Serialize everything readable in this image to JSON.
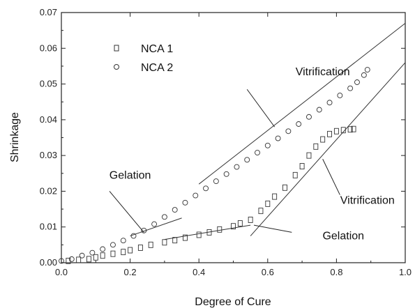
{
  "chart_data": {
    "type": "scatter",
    "title": "",
    "xlabel": "Degree of Cure",
    "ylabel": "Shrinkage",
    "xlim": [
      0.0,
      1.0
    ],
    "ylim": [
      0.0,
      0.07
    ],
    "x_ticks": [
      "0.0",
      "0.2",
      "0.4",
      "0.6",
      "0.8",
      "1.0"
    ],
    "y_ticks": [
      "0.00",
      "0.01",
      "0.02",
      "0.03",
      "0.04",
      "0.05",
      "0.06",
      "0.07"
    ],
    "grid": false,
    "legend_position": "top-left",
    "series": [
      {
        "name": "NCA 1",
        "marker": "square",
        "points": [
          [
            0.02,
            0.0005
          ],
          [
            0.05,
            0.0008
          ],
          [
            0.08,
            0.001
          ],
          [
            0.1,
            0.0015
          ],
          [
            0.12,
            0.002
          ],
          [
            0.15,
            0.0025
          ],
          [
            0.18,
            0.003
          ],
          [
            0.2,
            0.0035
          ],
          [
            0.23,
            0.0042
          ],
          [
            0.26,
            0.005
          ],
          [
            0.3,
            0.0057
          ],
          [
            0.33,
            0.0063
          ],
          [
            0.36,
            0.007
          ],
          [
            0.4,
            0.0078
          ],
          [
            0.43,
            0.0085
          ],
          [
            0.46,
            0.0093
          ],
          [
            0.5,
            0.0102
          ],
          [
            0.52,
            0.011
          ],
          [
            0.55,
            0.012
          ],
          [
            0.58,
            0.0145
          ],
          [
            0.6,
            0.0165
          ],
          [
            0.62,
            0.0185
          ],
          [
            0.65,
            0.021
          ],
          [
            0.68,
            0.0245
          ],
          [
            0.7,
            0.027
          ],
          [
            0.72,
            0.03
          ],
          [
            0.74,
            0.0325
          ],
          [
            0.76,
            0.0345
          ],
          [
            0.78,
            0.036
          ],
          [
            0.8,
            0.0368
          ],
          [
            0.82,
            0.0371
          ],
          [
            0.84,
            0.0373
          ],
          [
            0.85,
            0.0374
          ]
        ]
      },
      {
        "name": "NCA 2",
        "marker": "circle",
        "points": [
          [
            0.0,
            0.0005
          ],
          [
            0.03,
            0.001
          ],
          [
            0.06,
            0.002
          ],
          [
            0.09,
            0.0028
          ],
          [
            0.12,
            0.0038
          ],
          [
            0.15,
            0.005
          ],
          [
            0.18,
            0.0062
          ],
          [
            0.21,
            0.0075
          ],
          [
            0.24,
            0.009
          ],
          [
            0.27,
            0.0108
          ],
          [
            0.3,
            0.0128
          ],
          [
            0.33,
            0.0148
          ],
          [
            0.36,
            0.0168
          ],
          [
            0.39,
            0.0188
          ],
          [
            0.42,
            0.0208
          ],
          [
            0.45,
            0.0228
          ],
          [
            0.48,
            0.0248
          ],
          [
            0.51,
            0.0268
          ],
          [
            0.54,
            0.0288
          ],
          [
            0.57,
            0.0308
          ],
          [
            0.6,
            0.0328
          ],
          [
            0.63,
            0.0348
          ],
          [
            0.66,
            0.0368
          ],
          [
            0.69,
            0.0388
          ],
          [
            0.72,
            0.0408
          ],
          [
            0.75,
            0.0428
          ],
          [
            0.78,
            0.0448
          ],
          [
            0.81,
            0.0468
          ],
          [
            0.84,
            0.0488
          ],
          [
            0.86,
            0.0505
          ],
          [
            0.88,
            0.0525
          ],
          [
            0.89,
            0.054
          ]
        ]
      }
    ],
    "fit_lines": [
      {
        "x": [
          0.2,
          0.35
        ],
        "y": [
          0.0075,
          0.0125
        ]
      },
      {
        "x": [
          0.4,
          1.0
        ],
        "y": [
          0.022,
          0.067
        ]
      },
      {
        "x": [
          0.3,
          0.55
        ],
        "y": [
          0.0065,
          0.0105
        ]
      },
      {
        "x": [
          0.55,
          1.0
        ],
        "y": [
          0.0075,
          0.056
        ]
      }
    ],
    "annotations": [
      {
        "text": "Vitrification",
        "text_at": [
          0.76,
          0.0525
        ],
        "arrow_to": [
          0.62,
          0.038
        ],
        "arrow_from": [
          0.54,
          0.0485
        ]
      },
      {
        "text": "Gelation",
        "text_at": [
          0.2,
          0.0235
        ],
        "arrow_to": [
          0.24,
          0.0085
        ],
        "arrow_from": [
          0.14,
          0.02
        ]
      },
      {
        "text": "Vitrification",
        "text_at": [
          0.89,
          0.0165
        ],
        "arrow_to": [
          0.76,
          0.029
        ],
        "arrow_from": [
          0.81,
          0.019
        ]
      },
      {
        "text": "Gelation",
        "text_at": [
          0.82,
          0.0065
        ],
        "arrow_to": [
          0.56,
          0.0105
        ],
        "arrow_from": [
          0.67,
          0.0085
        ]
      }
    ]
  }
}
